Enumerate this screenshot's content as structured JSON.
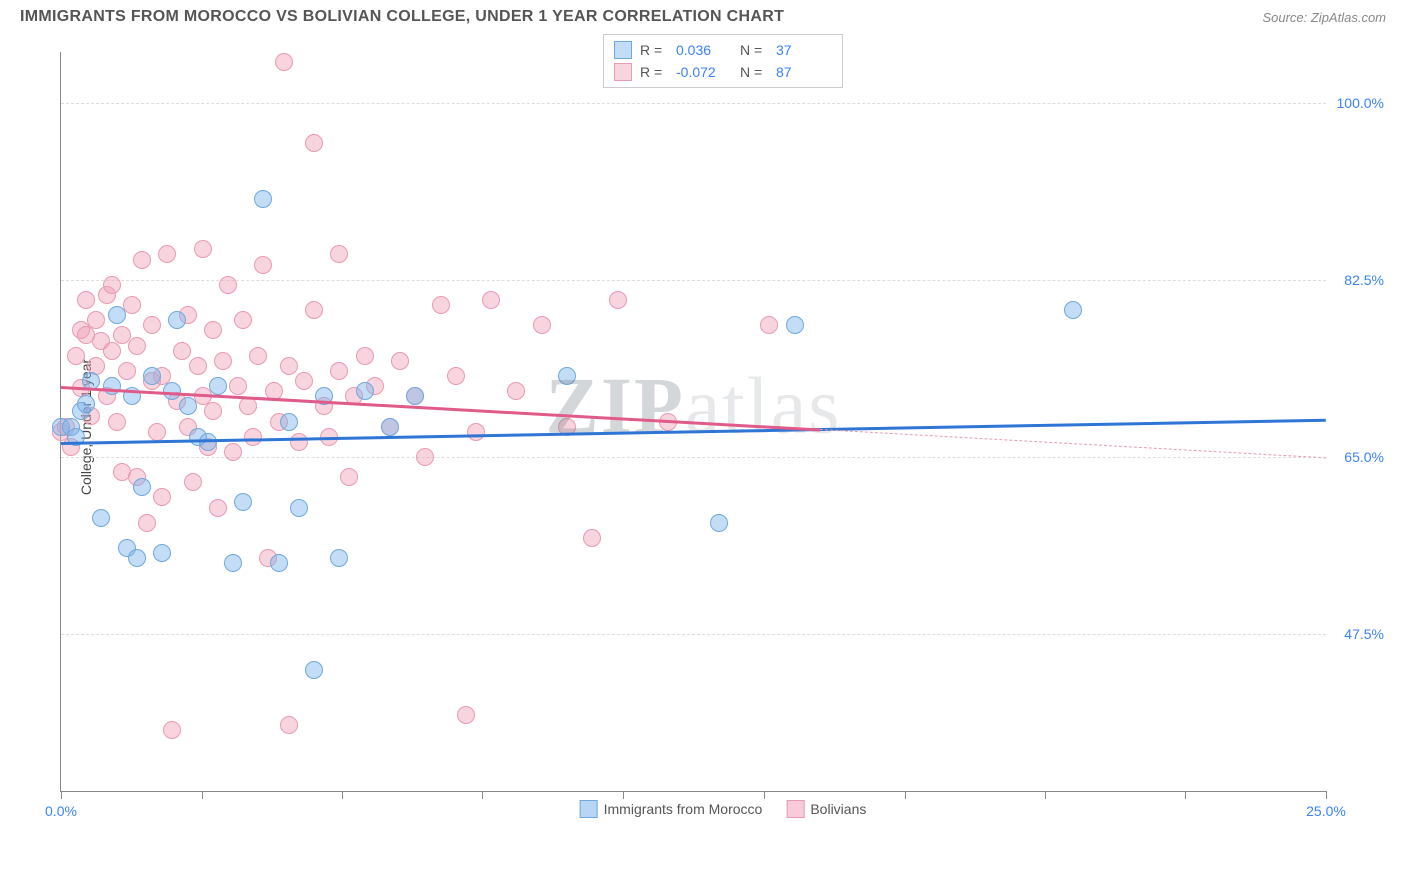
{
  "header": {
    "title": "IMMIGRANTS FROM MOROCCO VS BOLIVIAN COLLEGE, UNDER 1 YEAR CORRELATION CHART",
    "source": "Source: ZipAtlas.com"
  },
  "watermark": "ZIPatlas",
  "chart": {
    "type": "scatter",
    "y_axis_title": "College, Under 1 year",
    "xlim": [
      0,
      25
    ],
    "ylim": [
      32,
      105
    ],
    "x_ticks": [
      0,
      2.78,
      5.56,
      8.33,
      11.11,
      13.89,
      16.67,
      19.44,
      22.22,
      25
    ],
    "x_tick_labels": {
      "0": "0.0%",
      "25": "25.0%"
    },
    "y_ticks": [
      47.5,
      65.0,
      82.5,
      100.0
    ],
    "y_tick_labels": [
      "47.5%",
      "65.0%",
      "82.5%",
      "100.0%"
    ],
    "background_color": "#ffffff",
    "grid_color": "#dddddd",
    "axis_color": "#888888",
    "tick_label_color": "#3b82f6",
    "point_radius": 9,
    "series": [
      {
        "name": "Immigrants from Morocco",
        "fill": "rgba(125,180,235,0.45)",
        "stroke": "#6fa8dc",
        "trend_color": "#2f75d6",
        "R": "0.036",
        "N": "37",
        "trend": {
          "x1": 0,
          "y1": 66.5,
          "x2": 25,
          "y2": 68.8,
          "solid_until_x": 25
        },
        "points": [
          [
            0.0,
            68.0
          ],
          [
            0.2,
            68.0
          ],
          [
            0.3,
            67.0
          ],
          [
            0.4,
            69.5
          ],
          [
            0.5,
            70.2
          ],
          [
            0.6,
            72.5
          ],
          [
            0.8,
            59.0
          ],
          [
            1.0,
            72.0
          ],
          [
            1.1,
            79.0
          ],
          [
            1.3,
            56.0
          ],
          [
            1.4,
            71.0
          ],
          [
            1.5,
            55.0
          ],
          [
            1.6,
            62.0
          ],
          [
            1.8,
            73.0
          ],
          [
            2.0,
            55.5
          ],
          [
            2.2,
            71.5
          ],
          [
            2.3,
            78.5
          ],
          [
            2.5,
            70.0
          ],
          [
            2.7,
            67.0
          ],
          [
            2.9,
            66.5
          ],
          [
            3.1,
            72.0
          ],
          [
            3.4,
            54.5
          ],
          [
            3.6,
            60.5
          ],
          [
            4.0,
            90.5
          ],
          [
            4.3,
            54.5
          ],
          [
            4.5,
            68.5
          ],
          [
            4.7,
            60.0
          ],
          [
            5.0,
            44.0
          ],
          [
            5.2,
            71.0
          ],
          [
            5.5,
            55.0
          ],
          [
            6.0,
            71.5
          ],
          [
            6.5,
            68.0
          ],
          [
            7.0,
            71.0
          ],
          [
            10.0,
            73.0
          ],
          [
            13.0,
            58.5
          ],
          [
            14.5,
            78.0
          ],
          [
            20.0,
            79.5
          ]
        ]
      },
      {
        "name": "Bolivians",
        "fill": "rgba(240,160,185,0.45)",
        "stroke": "#e89bb2",
        "trend_color": "#e05a8a",
        "R": "-0.072",
        "N": "87",
        "trend": {
          "x1": 0,
          "y1": 72.0,
          "x2": 25,
          "y2": 65.0,
          "solid_until_x": 15
        },
        "points": [
          [
            0.0,
            67.5
          ],
          [
            0.1,
            68.0
          ],
          [
            0.2,
            66.0
          ],
          [
            0.3,
            75.0
          ],
          [
            0.4,
            71.8
          ],
          [
            0.4,
            77.5
          ],
          [
            0.5,
            77.0
          ],
          [
            0.5,
            80.5
          ],
          [
            0.6,
            69.0
          ],
          [
            0.7,
            78.5
          ],
          [
            0.7,
            74.0
          ],
          [
            0.8,
            76.5
          ],
          [
            0.9,
            81.0
          ],
          [
            0.9,
            71.0
          ],
          [
            1.0,
            75.5
          ],
          [
            1.0,
            82.0
          ],
          [
            1.1,
            68.5
          ],
          [
            1.2,
            63.5
          ],
          [
            1.2,
            77.0
          ],
          [
            1.3,
            73.5
          ],
          [
            1.4,
            80.0
          ],
          [
            1.5,
            63.0
          ],
          [
            1.5,
            76.0
          ],
          [
            1.6,
            84.5
          ],
          [
            1.7,
            58.5
          ],
          [
            1.8,
            72.5
          ],
          [
            1.8,
            78.0
          ],
          [
            1.9,
            67.5
          ],
          [
            2.0,
            73.0
          ],
          [
            2.0,
            61.0
          ],
          [
            2.1,
            85.0
          ],
          [
            2.2,
            38.0
          ],
          [
            2.3,
            70.5
          ],
          [
            2.4,
            75.5
          ],
          [
            2.5,
            68.0
          ],
          [
            2.5,
            79.0
          ],
          [
            2.6,
            62.5
          ],
          [
            2.7,
            74.0
          ],
          [
            2.8,
            71.0
          ],
          [
            2.8,
            85.5
          ],
          [
            2.9,
            66.0
          ],
          [
            3.0,
            69.5
          ],
          [
            3.0,
            77.5
          ],
          [
            3.1,
            60.0
          ],
          [
            3.2,
            74.5
          ],
          [
            3.3,
            82.0
          ],
          [
            3.4,
            65.5
          ],
          [
            3.5,
            72.0
          ],
          [
            3.6,
            78.5
          ],
          [
            3.7,
            70.0
          ],
          [
            3.8,
            67.0
          ],
          [
            3.9,
            75.0
          ],
          [
            4.0,
            84.0
          ],
          [
            4.1,
            55.0
          ],
          [
            4.2,
            71.5
          ],
          [
            4.3,
            68.5
          ],
          [
            4.4,
            104.0
          ],
          [
            4.5,
            74.0
          ],
          [
            4.5,
            38.5
          ],
          [
            4.7,
            66.5
          ],
          [
            4.8,
            72.5
          ],
          [
            5.0,
            79.5
          ],
          [
            5.0,
            96.0
          ],
          [
            5.2,
            70.0
          ],
          [
            5.3,
            67.0
          ],
          [
            5.5,
            73.5
          ],
          [
            5.5,
            85.0
          ],
          [
            5.7,
            63.0
          ],
          [
            5.8,
            71.0
          ],
          [
            6.0,
            75.0
          ],
          [
            6.2,
            72.0
          ],
          [
            6.5,
            68.0
          ],
          [
            6.7,
            74.5
          ],
          [
            7.0,
            71.0
          ],
          [
            7.2,
            65.0
          ],
          [
            7.5,
            80.0
          ],
          [
            7.8,
            73.0
          ],
          [
            8.0,
            39.5
          ],
          [
            8.2,
            67.5
          ],
          [
            8.5,
            80.5
          ],
          [
            9.0,
            71.5
          ],
          [
            9.5,
            78.0
          ],
          [
            10.0,
            68.0
          ],
          [
            10.5,
            57.0
          ],
          [
            11.0,
            80.5
          ],
          [
            12.0,
            68.5
          ],
          [
            14.0,
            78.0
          ]
        ]
      }
    ],
    "legend_bottom": [
      {
        "label": "Immigrants from Morocco",
        "fill": "rgba(125,180,235,0.55)",
        "stroke": "#6fa8dc"
      },
      {
        "label": "Bolivians",
        "fill": "rgba(240,160,185,0.55)",
        "stroke": "#e89bb2"
      }
    ]
  }
}
